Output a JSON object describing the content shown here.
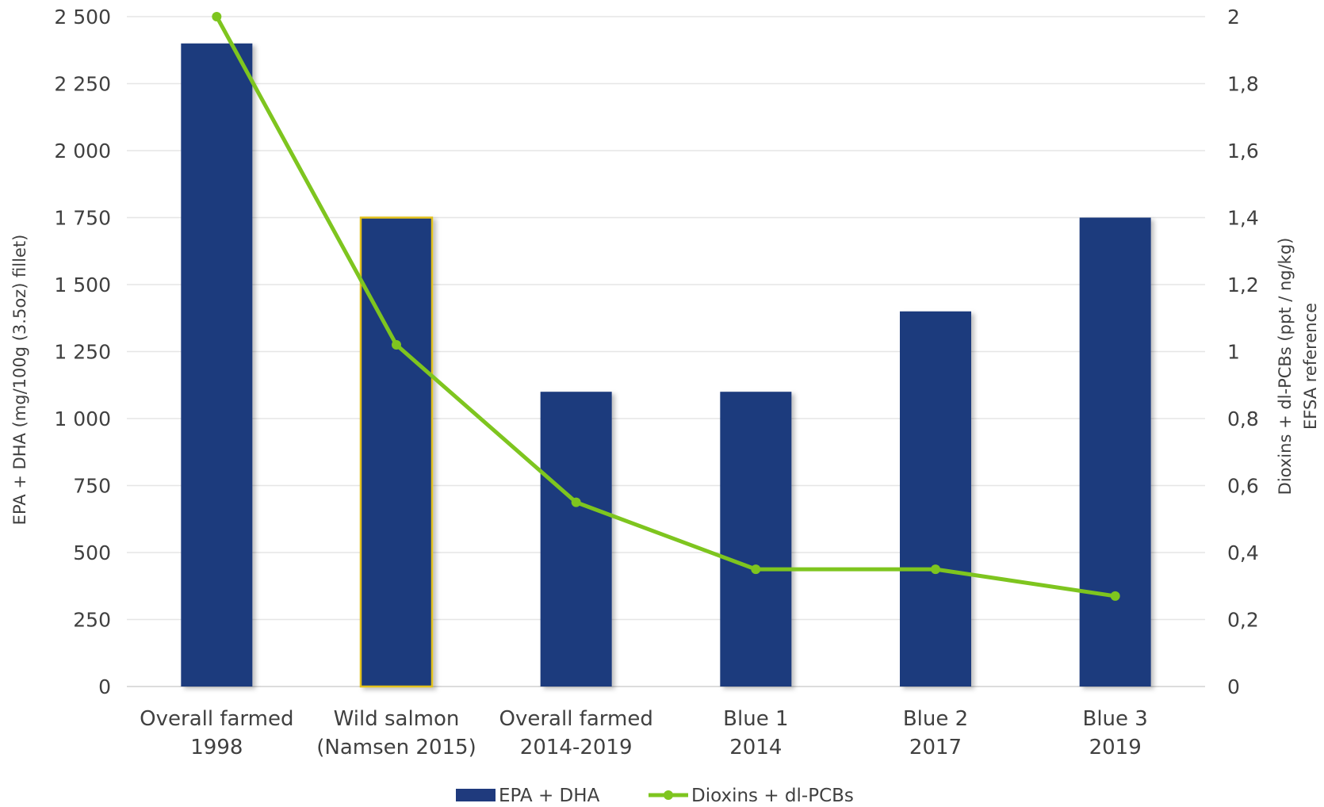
{
  "chart_data": {
    "type": "bar",
    "categories": [
      [
        "Overall farmed",
        "1998"
      ],
      [
        "Wild salmon",
        "(Namsen 2015)"
      ],
      [
        "Overall farmed",
        "2014-2019"
      ],
      [
        "Blue 1",
        "2014"
      ],
      [
        "Blue 2",
        "2017"
      ],
      [
        "Blue 3",
        "2019"
      ]
    ],
    "series": [
      {
        "name": "EPA + DHA",
        "type": "bar",
        "axis": "left",
        "color": "#1f3a7d",
        "values": [
          2400,
          1750,
          1100,
          1100,
          1400,
          1750
        ],
        "highlight_index": 1,
        "highlight_color": "#e3c21a"
      },
      {
        "name": "Dioxins + dl-PCBs",
        "type": "line",
        "axis": "right",
        "color": "#7ec51f",
        "values": [
          2.0,
          1.02,
          0.55,
          0.35,
          0.35,
          0.27
        ]
      }
    ],
    "y_left": {
      "label": "EPA + DHA (mg/100g (3.5oz) fillet)",
      "ylim": [
        0,
        2500
      ],
      "ticks": [
        0,
        250,
        500,
        750,
        1000,
        1250,
        1500,
        1750,
        2000,
        2250,
        2500
      ],
      "tick_labels": [
        "0",
        "250",
        "500",
        "750",
        "1 000",
        "1 250",
        "1 500",
        "1 750",
        "2 000",
        "2 250",
        "2 500"
      ]
    },
    "y_right": {
      "label_lines": [
        "Dioxins + dl-PCBs (ppt / ng/kg)",
        "EFSA reference"
      ],
      "ylim": [
        0,
        2
      ],
      "ticks": [
        0,
        0.2,
        0.4,
        0.6,
        0.8,
        1,
        1.2,
        1.4,
        1.6,
        1.8,
        2
      ],
      "tick_labels": [
        "0",
        "0,2",
        "0,4",
        "0,6",
        "0,8",
        "1",
        "1,2",
        "1,4",
        "1,6",
        "1,8",
        "2"
      ]
    },
    "grid": true,
    "gridline_color": "#e6e6e6",
    "legend_position": "bottom"
  }
}
